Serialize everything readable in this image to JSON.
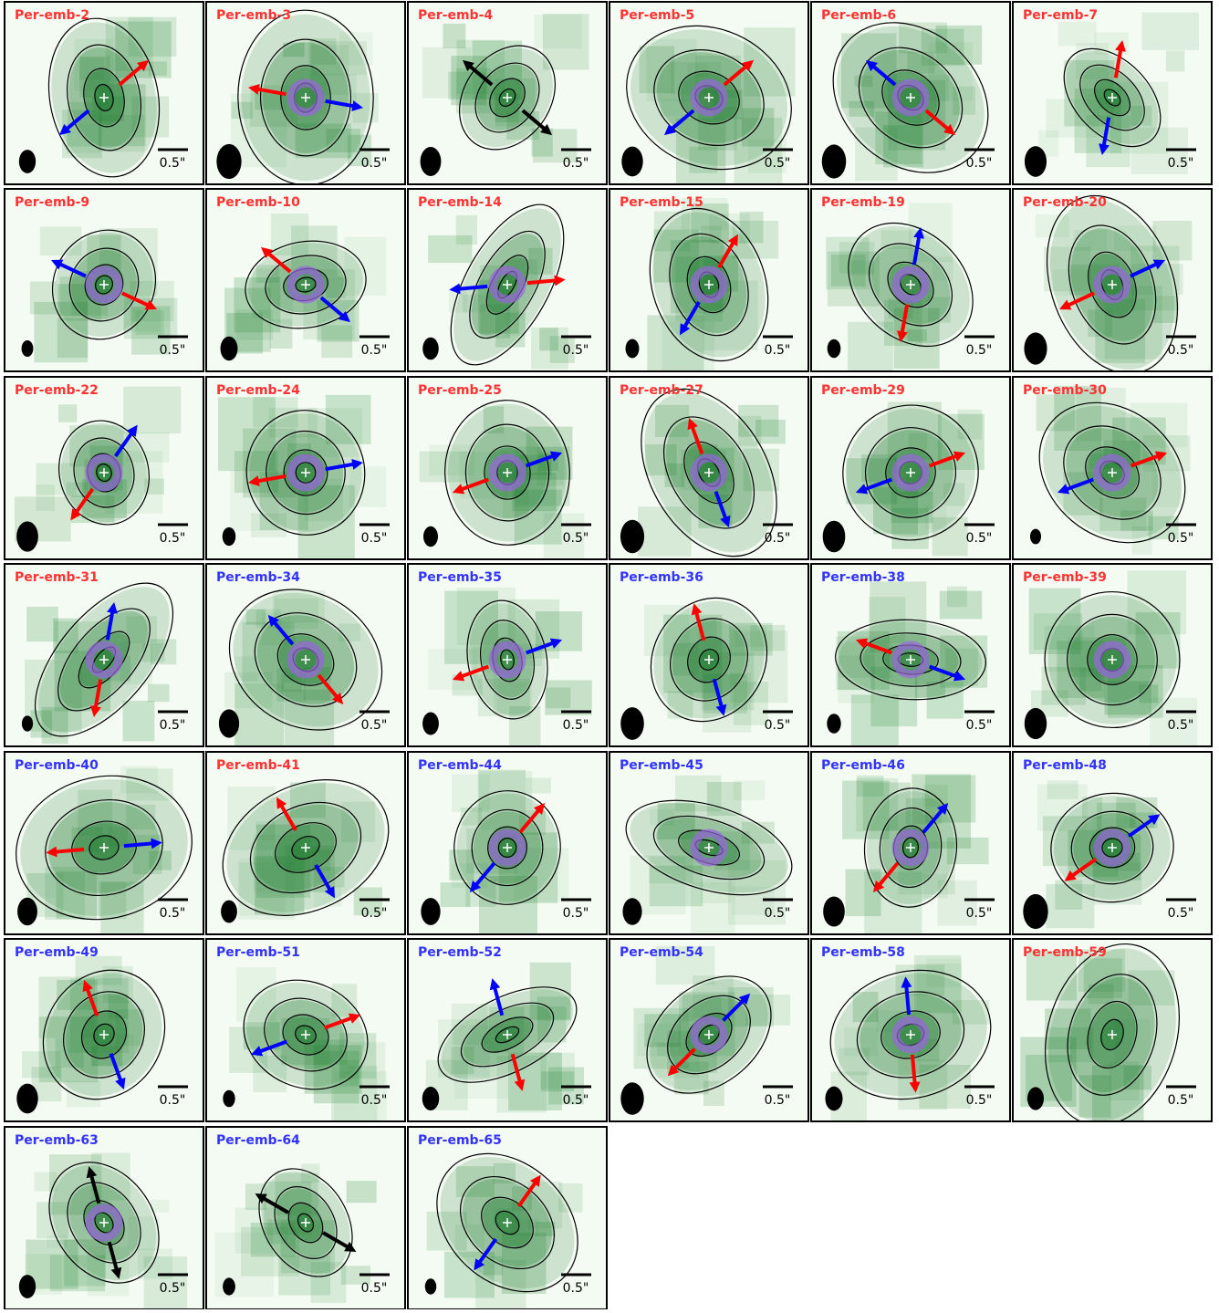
{
  "scale_label": "0.5\"",
  "panels": [
    {
      "label": "Per-emb-2",
      "color": "#ff3333"
    },
    {
      "label": "Per-emb-3",
      "color": "#ff3333"
    },
    {
      "label": "Per-emb-4",
      "color": "#ff3333"
    },
    {
      "label": "Per-emb-5",
      "color": "#ff3333"
    },
    {
      "label": "Per-emb-6",
      "color": "#ff3333"
    },
    {
      "label": "Per-emb-7",
      "color": "#ff3333"
    },
    {
      "label": "Per-emb-9",
      "color": "#ff3333"
    },
    {
      "label": "Per-emb-10",
      "color": "#ff3333"
    },
    {
      "label": "Per-emb-14",
      "color": "#ff3333"
    },
    {
      "label": "Per-emb-15",
      "color": "#ff3333"
    },
    {
      "label": "Per-emb-19",
      "color": "#ff3333"
    },
    {
      "label": "Per-emb-20",
      "color": "#ff3333"
    },
    {
      "label": "Per-emb-22",
      "color": "#ff3333"
    },
    {
      "label": "Per-emb-24",
      "color": "#ff3333"
    },
    {
      "label": "Per-emb-25",
      "color": "#ff3333"
    },
    {
      "label": "Per-emb-27",
      "color": "#ff3333"
    },
    {
      "label": "Per-emb-29",
      "color": "#ff3333"
    },
    {
      "label": "Per-emb-30",
      "color": "#ff3333"
    },
    {
      "label": "Per-emb-31",
      "color": "#ff3333"
    },
    {
      "label": "Per-emb-34",
      "color": "#3333ff"
    },
    {
      "label": "Per-emb-35",
      "color": "#3333ff"
    },
    {
      "label": "Per-emb-36",
      "color": "#3333ff"
    },
    {
      "label": "Per-emb-38",
      "color": "#3333ff"
    },
    {
      "label": "Per-emb-39",
      "color": "#ff3333"
    },
    {
      "label": "Per-emb-40",
      "color": "#3333ff"
    },
    {
      "label": "Per-emb-41",
      "color": "#ff3333"
    },
    {
      "label": "Per-emb-44",
      "color": "#3333ff"
    },
    {
      "label": "Per-emb-45",
      "color": "#3333ff"
    },
    {
      "label": "Per-emb-46",
      "color": "#3333ff"
    },
    {
      "label": "Per-emb-48",
      "color": "#3333ff"
    },
    {
      "label": "Per-emb-49",
      "color": "#3333ff"
    },
    {
      "label": "Per-emb-51",
      "color": "#3333ff"
    },
    {
      "label": "Per-emb-52",
      "color": "#3333ff"
    },
    {
      "label": "Per-emb-54",
      "color": "#3333ff"
    },
    {
      "label": "Per-emb-58",
      "color": "#3333ff"
    },
    {
      "label": "Per-emb-59",
      "color": "#ff3333"
    },
    {
      "label": "Per-emb-63",
      "color": "#3333ff"
    },
    {
      "label": "Per-emb-64",
      "color": "#3333ff"
    },
    {
      "label": "Per-emb-65",
      "color": "#3333ff"
    }
  ]
}
